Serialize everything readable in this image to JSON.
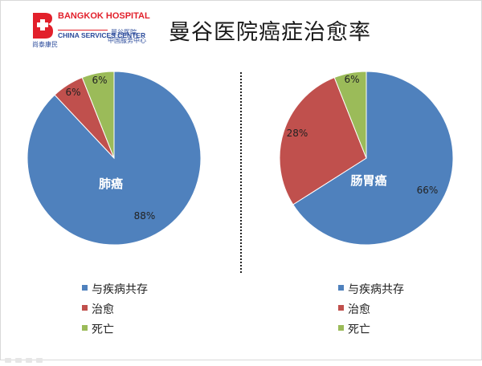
{
  "logo": {
    "name_en": "BANGKOK HOSPITAL",
    "subtitle_en": "CHINA SERVICES CENTER",
    "cn_left": "尚泰康民",
    "cn_right_1": "曼谷医院",
    "cn_right_2": "中国服务中心"
  },
  "title": "曼谷医院癌症治愈率",
  "colors": {
    "series_1": "#4f81bd",
    "series_2": "#c0504d",
    "series_3": "#9bbb59"
  },
  "chart_data": [
    {
      "type": "pie",
      "label": "肺癌",
      "slices": [
        {
          "name": "与疾病共存",
          "value": 88,
          "label": "88%"
        },
        {
          "name": "治愈",
          "value": 6,
          "label": "6%"
        },
        {
          "name": "死亡",
          "value": 6,
          "label": "6%"
        }
      ],
      "legend": [
        "与疾病共存",
        "治愈",
        "死亡"
      ],
      "legend_position": "bottom"
    },
    {
      "type": "pie",
      "label": "肠胃癌",
      "slices": [
        {
          "name": "与疾病共存",
          "value": 66,
          "label": "66%"
        },
        {
          "name": "治愈",
          "value": 28,
          "label": "28%"
        },
        {
          "name": "死亡",
          "value": 6,
          "label": "6%"
        }
      ],
      "legend": [
        "与疾病共存",
        "治愈",
        "死亡"
      ],
      "legend_position": "bottom"
    }
  ]
}
